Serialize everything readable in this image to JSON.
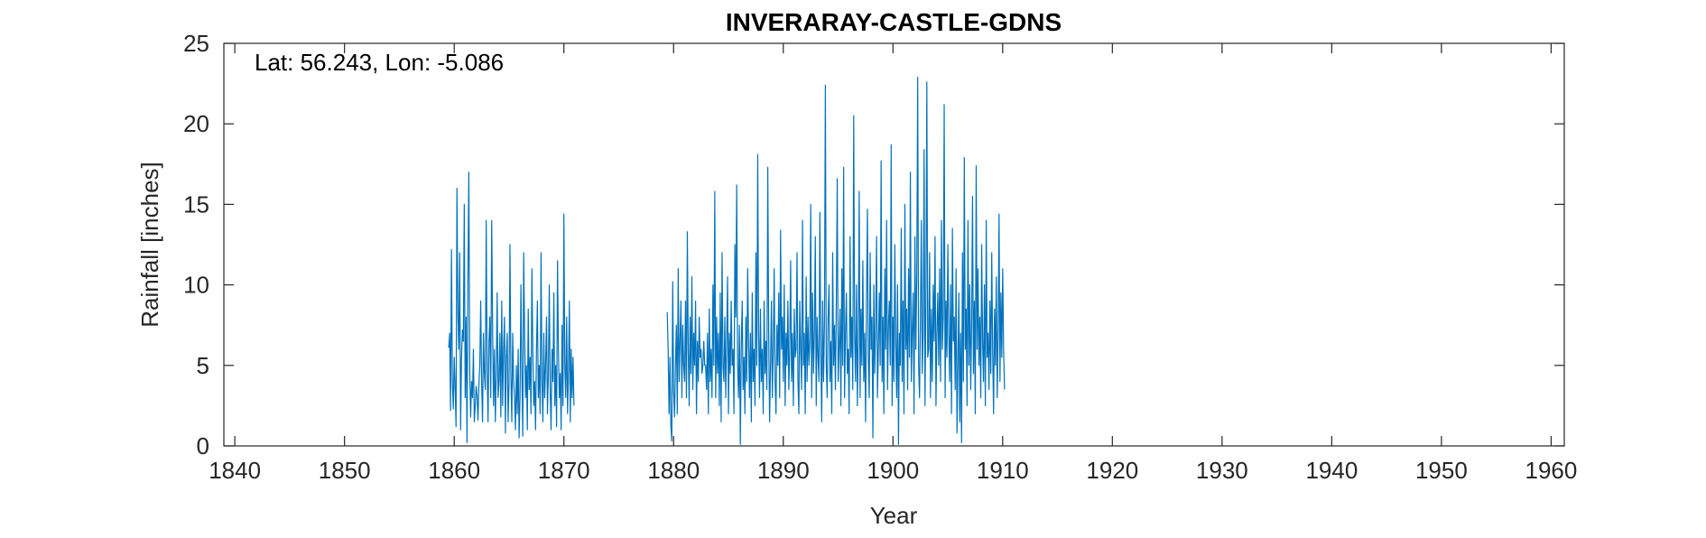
{
  "chart_data": {
    "type": "line",
    "title": "INVERARAY-CASTLE-GDNS",
    "annotation": "Lat: 56.243, Lon: -5.086",
    "xlabel": "Year",
    "ylabel": "Rainfall [inches]",
    "xlim": [
      1839,
      1961.2
    ],
    "ylim": [
      0,
      25
    ],
    "xticks": [
      1840,
      1850,
      1860,
      1870,
      1880,
      1890,
      1900,
      1910,
      1920,
      1930,
      1940,
      1950,
      1960
    ],
    "yticks": [
      0,
      5,
      10,
      15,
      20,
      25
    ],
    "grid": false,
    "legend": "none",
    "color": "#0072BD",
    "series": [
      {
        "segments": [
          {
            "start_year": 1859.5,
            "step": 0.0833333,
            "values": [
              6.1,
              7.0,
              2.2,
              12.2,
              4.0,
              2.3,
              5.5,
              3.6,
              1.2,
              16.0,
              8.3,
              6.0,
              12.0,
              1.0,
              5.5,
              7.2,
              6.5,
              15.0,
              3.0,
              8.0,
              0.2,
              10.5,
              17.0,
              4.5,
              1.8,
              4.0,
              3.0,
              6.0,
              1.5,
              2.5,
              3.7,
              3.1,
              1.6,
              3.8,
              5.0,
              9.0,
              4.0,
              1.5,
              7.0,
              4.5,
              3.5,
              14.0,
              5.0,
              1.5,
              6.5,
              8.0,
              3.0,
              14.0,
              7.5,
              2.5,
              6.0,
              1.5,
              4.5,
              9.5,
              3.0,
              4.0,
              7.0,
              1.8,
              9.0,
              2.5,
              6.0,
              8.0,
              0.8,
              5.5,
              7.0,
              1.5,
              4.0,
              12.5,
              4.5,
              1.5,
              7.0,
              4.0,
              3.0,
              1.0,
              5.0,
              2.0,
              6.0,
              0.5,
              3.0,
              10.0,
              4.5,
              0.6,
              12.0,
              7.0,
              3.0,
              5.0,
              1.0,
              8.5,
              3.5,
              5.5,
              2.0,
              11.0,
              6.0,
              2.5,
              4.0,
              1.0,
              6.0,
              9.0,
              3.0,
              5.0,
              2.0,
              12.0,
              4.0,
              1.5,
              7.0,
              3.0,
              5.0,
              8.0,
              2.0,
              4.5,
              10.0,
              3.5,
              1.0,
              6.0,
              4.0,
              9.5,
              2.5,
              5.0,
              1.2,
              11.5,
              6.0,
              3.0,
              4.5,
              1.0,
              7.5,
              2.5,
              14.4,
              5.0,
              3.0,
              8.0,
              2.0,
              4.5,
              9.0,
              1.5,
              6.0,
              3.0,
              5.5,
              2.5
            ]
          },
          {
            "start_year": 1879.42,
            "step": 0.0833333,
            "values": [
              8.3,
              6.0,
              2.0,
              5.5,
              1.2,
              0.3,
              10.2,
              3.5,
              1.8,
              5.0,
              7.5,
              2.0,
              11.0,
              4.0,
              6.5,
              9.0,
              3.0,
              7.5,
              5.0,
              4.0,
              9.0,
              3.0,
              13.3,
              6.0,
              2.5,
              8.0,
              4.5,
              10.5,
              3.5,
              7.0,
              5.0,
              9.0,
              2.0,
              6.5,
              4.0,
              8.0,
              5.5,
              6.0,
              4.5,
              5.0,
              6.5,
              5.0,
              5.0,
              3.5,
              7.0,
              2.0,
              8.5,
              4.0,
              6.0,
              3.0,
              10.0,
              5.0,
              15.8,
              3.0,
              8.0,
              4.5,
              7.0,
              2.5,
              9.5,
              1.5,
              12.0,
              5.0,
              4.0,
              8.0,
              3.0,
              6.5,
              10.5,
              2.0,
              7.0,
              4.5,
              9.0,
              5.0,
              6.0,
              2.0,
              12.5,
              8.0,
              16.2,
              5.0,
              3.0,
              7.5,
              0.1,
              6.0,
              9.0,
              3.5,
              5.5,
              2.0,
              8.0,
              4.0,
              11.0,
              6.5,
              3.0,
              7.0,
              1.5,
              9.5,
              4.0,
              6.0,
              2.5,
              12.0,
              5.0,
              18.1,
              7.0,
              3.0,
              8.5,
              4.0,
              6.0,
              2.0,
              9.0,
              4.5,
              6.5,
              3.5,
              17.3,
              7.0,
              1.5,
              5.0,
              9.0,
              3.0,
              6.0,
              11.0,
              4.0,
              2.0,
              7.5,
              5.0,
              9.5,
              3.0,
              13.4,
              6.0,
              8.0,
              4.0,
              10.0,
              2.5,
              7.0,
              5.0,
              9.0,
              3.5,
              6.0,
              11.5,
              4.0,
              7.0,
              2.5,
              8.5,
              5.5,
              6.0,
              12.0,
              4.0,
              2.0,
              9.0,
              6.0,
              3.5,
              14.0,
              5.0,
              7.0,
              2.0,
              10.5,
              4.0,
              8.0,
              5.0,
              6.5,
              15.0,
              3.0,
              9.5,
              4.5,
              7.0,
              13.0,
              2.5,
              8.0,
              5.5,
              4.0,
              14.5,
              6.0,
              1.5,
              9.0,
              4.0,
              7.5,
              22.4,
              5.0,
              3.0,
              8.0,
              10.0,
              4.0,
              6.5,
              2.0,
              12.0,
              5.0,
              7.5,
              3.5,
              9.0,
              16.6,
              4.0,
              6.0,
              8.5,
              2.5,
              11.0,
              5.0,
              17.3,
              3.0,
              7.0,
              9.5,
              4.5,
              6.0,
              2.0,
              13.0,
              5.5,
              8.0,
              3.5,
              20.5,
              7.0,
              4.0,
              10.0,
              2.5,
              6.5,
              15.8,
              3.0,
              8.5,
              5.0,
              11.5,
              4.0,
              7.0,
              1.5,
              9.0,
              14.7,
              5.5,
              3.0,
              12.0,
              6.0,
              8.0,
              0.5,
              10.0,
              4.5,
              7.5,
              13.0,
              3.0,
              6.0,
              9.5,
              5.0,
              17.7,
              4.0,
              8.0,
              2.0,
              11.0,
              6.0,
              14.0,
              3.5,
              7.5,
              9.0,
              5.0,
              18.7,
              2.5,
              8.0,
              4.0,
              12.5,
              6.5,
              3.0,
              10.0,
              0.1,
              7.0,
              5.0,
              13.5,
              4.0,
              9.0,
              2.0,
              15.0,
              6.0,
              8.5,
              3.5,
              11.0,
              5.5,
              17.0,
              4.0,
              7.0,
              9.5,
              2.0,
              13.0,
              6.0,
              10.5,
              22.9,
              5.0,
              3.0,
              8.0,
              14.0,
              4.5,
              7.0,
              18.4,
              2.5,
              9.0,
              22.6,
              5.5,
              6.0,
              12.0,
              3.0,
              8.5,
              4.0,
              10.0,
              6.5,
              13.0,
              2.5,
              7.0,
              9.5,
              5.0,
              11.0,
              4.0,
              14.0,
              6.0,
              8.0,
              21.2,
              3.0,
              9.0,
              5.5,
              12.5,
              7.0,
              4.0,
              10.0,
              2.0,
              13.5,
              6.5,
              8.0,
              3.5,
              11.0,
              0.8,
              5.0,
              9.5,
              1.5,
              7.0,
              0.2,
              12.0,
              4.0,
              17.9,
              6.0,
              8.5,
              2.5,
              14.0,
              5.0,
              10.0,
              3.5,
              7.5,
              15.5,
              4.5,
              9.0,
              2.0,
              17.4,
              6.0,
              11.0,
              5.0,
              8.0,
              3.0,
              12.5,
              6.5,
              4.0,
              10.0,
              2.5,
              14.0,
              5.5,
              7.0,
              3.5,
              9.0,
              4.5,
              12.0,
              6.0,
              2.0,
              8.5,
              5.0,
              10.5,
              3.0,
              7.0,
              14.4,
              4.0,
              9.5,
              5.5,
              11.0,
              6.0,
              3.5
            ]
          }
        ]
      }
    ]
  }
}
